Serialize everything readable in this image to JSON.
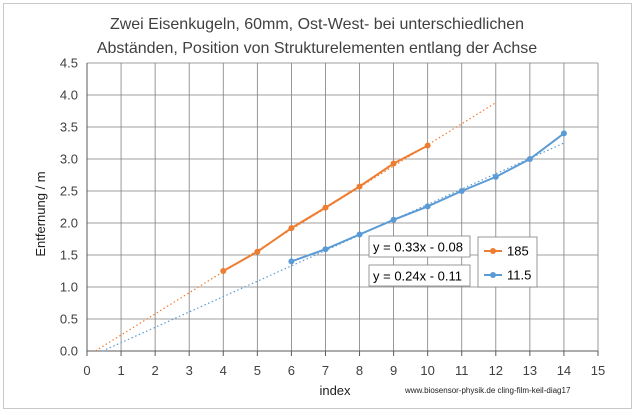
{
  "chart_data": {
    "type": "scatter",
    "title_lines": [
      "Zwei Eisenkugeln, 60mm, Ost-West-  bei unterschiedlichen",
      "Abständen, Position von Strukturelementen entlang der Achse"
    ],
    "xlabel": "index",
    "ylabel": "Entfernung / m",
    "xlim": [
      0,
      15
    ],
    "ylim": [
      0,
      4.5
    ],
    "x_ticks": [
      0,
      1,
      2,
      3,
      4,
      5,
      6,
      7,
      8,
      9,
      10,
      11,
      12,
      13,
      14,
      15
    ],
    "y_ticks": [
      "0.0",
      "0.5",
      "1.0",
      "1.5",
      "2.0",
      "2.5",
      "3.0",
      "3.5",
      "4.0",
      "4.5"
    ],
    "grid": true,
    "series": [
      {
        "name": "185",
        "color": "#ED7D31",
        "x": [
          4,
          5,
          6,
          7,
          8,
          9,
          10
        ],
        "y": [
          1.25,
          1.55,
          1.92,
          2.24,
          2.57,
          2.93,
          3.21
        ],
        "trendline": {
          "equation": "y = 0.33x - 0.08",
          "slope": 0.33,
          "intercept": -0.08,
          "x_range": [
            0.25,
            12
          ]
        }
      },
      {
        "name": "11.5",
        "color": "#5B9BD5",
        "x": [
          6,
          7,
          8,
          9,
          10,
          11,
          12,
          13,
          14
        ],
        "y": [
          1.4,
          1.59,
          1.82,
          2.05,
          2.26,
          2.5,
          2.72,
          3.0,
          3.4
        ],
        "trendline": {
          "equation": "y = 0.24x - 0.11",
          "slope": 0.24,
          "intercept": -0.11,
          "x_range": [
            0.45,
            14
          ]
        }
      }
    ],
    "legend_position": "right",
    "credit": "www.biosensor-physik.de  cling-film-keil-diag17"
  }
}
